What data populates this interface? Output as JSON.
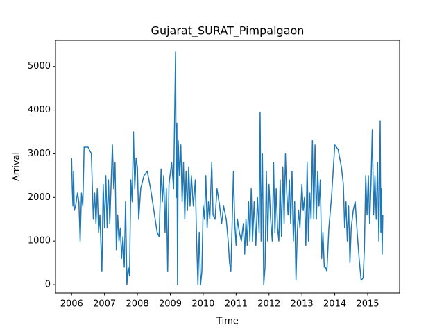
{
  "chart_data": {
    "type": "line",
    "title": "Gujarat_SURAT_Pimpalgaon",
    "x_label": "Time",
    "y_label": "Arrival",
    "color": "#1f77b4",
    "x": [
      2006.0,
      2006.02,
      2006.04,
      2006.06,
      2006.08,
      2006.12,
      2006.18,
      2006.22,
      2006.26,
      2006.3,
      2006.34,
      2006.38,
      2006.5,
      2006.6,
      2006.66,
      2006.7,
      2006.74,
      2006.78,
      2006.82,
      2006.86,
      2006.9,
      2006.92,
      2006.96,
      2007.0,
      2007.04,
      2007.08,
      2007.12,
      2007.16,
      2007.2,
      2007.24,
      2007.28,
      2007.32,
      2007.36,
      2007.4,
      2007.44,
      2007.48,
      2007.52,
      2007.56,
      2007.6,
      2007.64,
      2007.68,
      2007.72,
      2007.76,
      2007.8,
      2007.84,
      2007.88,
      2007.92,
      2007.96,
      2008.0,
      2008.04,
      2008.1,
      2008.2,
      2008.3,
      2008.4,
      2008.5,
      2008.6,
      2008.66,
      2008.72,
      2008.76,
      2008.8,
      2008.84,
      2008.88,
      2008.92,
      2008.96,
      2009.04,
      2009.1,
      2009.16,
      2009.18,
      2009.2,
      2009.22,
      2009.24,
      2009.28,
      2009.32,
      2009.36,
      2009.4,
      2009.44,
      2009.48,
      2009.52,
      2009.56,
      2009.6,
      2009.64,
      2009.7,
      2009.76,
      2009.8,
      2009.84,
      2009.88,
      2009.92,
      2009.96,
      2010.0,
      2010.04,
      2010.08,
      2010.12,
      2010.16,
      2010.2,
      2010.26,
      2010.3,
      2010.36,
      2010.42,
      2010.5,
      2010.56,
      2010.62,
      2010.7,
      2010.76,
      2010.8,
      2010.84,
      2010.88,
      2010.92,
      2010.96,
      2011.0,
      2011.04,
      2011.1,
      2011.16,
      2011.22,
      2011.26,
      2011.3,
      2011.34,
      2011.38,
      2011.42,
      2011.46,
      2011.5,
      2011.55,
      2011.6,
      2011.65,
      2011.7,
      2011.73,
      2011.76,
      2011.8,
      2011.84,
      2011.88,
      2011.92,
      2011.96,
      2012.0,
      2012.05,
      2012.1,
      2012.14,
      2012.18,
      2012.22,
      2012.26,
      2012.3,
      2012.34,
      2012.38,
      2012.42,
      2012.46,
      2012.5,
      2012.54,
      2012.58,
      2012.62,
      2012.66,
      2012.7,
      2012.74,
      2012.78,
      2012.82,
      2012.86,
      2012.9,
      2012.94,
      2013.0,
      2013.04,
      2013.08,
      2013.12,
      2013.16,
      2013.2,
      2013.24,
      2013.28,
      2013.32,
      2013.36,
      2013.4,
      2013.44,
      2013.48,
      2013.52,
      2013.56,
      2013.6,
      2013.64,
      2013.68,
      2013.72,
      2013.76,
      2013.82,
      2013.9,
      2014.0,
      2014.1,
      2014.2,
      2014.26,
      2014.3,
      2014.34,
      2014.38,
      2014.42,
      2014.46,
      2014.5,
      2014.56,
      2014.62,
      2014.68,
      2014.74,
      2014.8,
      2014.86,
      2014.9,
      2014.94,
      2014.98,
      2015.02,
      2015.06,
      2015.1,
      2015.14,
      2015.18,
      2015.22,
      2015.26,
      2015.3,
      2015.34,
      2015.38,
      2015.4,
      2015.42,
      2015.44,
      2015.46
    ],
    "values": [
      2900,
      2200,
      1800,
      2600,
      1700,
      1800,
      2100,
      1900,
      1000,
      2100,
      1800,
      3150,
      3150,
      3000,
      1500,
      2100,
      1400,
      2200,
      1200,
      1600,
      700,
      300,
      2300,
      1300,
      2500,
      1300,
      2400,
      1400,
      2300,
      3200,
      2200,
      2800,
      800,
      1600,
      1000,
      1300,
      600,
      1100,
      400,
      1900,
      0,
      400,
      200,
      2400,
      1900,
      3500,
      2200,
      2900,
      2700,
      1500,
      2200,
      2500,
      2600,
      2200,
      1700,
      1200,
      1100,
      2650,
      1900,
      2500,
      1200,
      2200,
      300,
      2300,
      2800,
      2200,
      5330,
      2000,
      3700,
      0,
      3300,
      2500,
      3200,
      1900,
      2800,
      1500,
      2600,
      1700,
      2700,
      1800,
      2500,
      1800,
      2400,
      1000,
      0,
      1200,
      0,
      300,
      1800,
      1500,
      2500,
      1300,
      1900,
      1500,
      2800,
      1600,
      1500,
      2200,
      1800,
      1400,
      1800,
      1500,
      1000,
      500,
      300,
      1400,
      2600,
      1400,
      900,
      1500,
      1200,
      1000,
      1400,
      700,
      1500,
      900,
      1900,
      1000,
      2200,
      1000,
      1900,
      900,
      2000,
      1200,
      3950,
      1000,
      3000,
      0,
      400,
      2600,
      1000,
      2300,
      1500,
      1000,
      2800,
      1200,
      2200,
      1300,
      1000,
      2400,
      1100,
      2700,
      1400,
      3000,
      2100,
      1600,
      2400,
      1400,
      2600,
      1000,
      1900,
      100,
      1200,
      1700,
      1300,
      2300,
      1700,
      2000,
      900,
      2800,
      1000,
      2100,
      1500,
      3300,
      1500,
      3200,
      1500,
      2600,
      1800,
      2400,
      600,
      1200,
      400,
      400,
      300,
      1300,
      2000,
      3200,
      3100,
      2700,
      2300,
      1300,
      1900,
      1000,
      1800,
      500,
      1300,
      1700,
      1900,
      1200,
      600,
      100,
      150,
      800,
      2500,
      1600,
      2500,
      1400,
      2300,
      3550,
      1600,
      2500,
      1500,
      2800,
      1000,
      3750,
      1200,
      2200,
      700,
      1600
    ],
    "xlim": [
      2005.51,
      2015.97
    ],
    "ylim": [
      -190,
      5600
    ],
    "xticks": [
      2006,
      2007,
      2008,
      2009,
      2010,
      2011,
      2012,
      2013,
      2014,
      2015
    ],
    "yticks": [
      0,
      1000,
      2000,
      3000,
      4000,
      5000
    ]
  }
}
